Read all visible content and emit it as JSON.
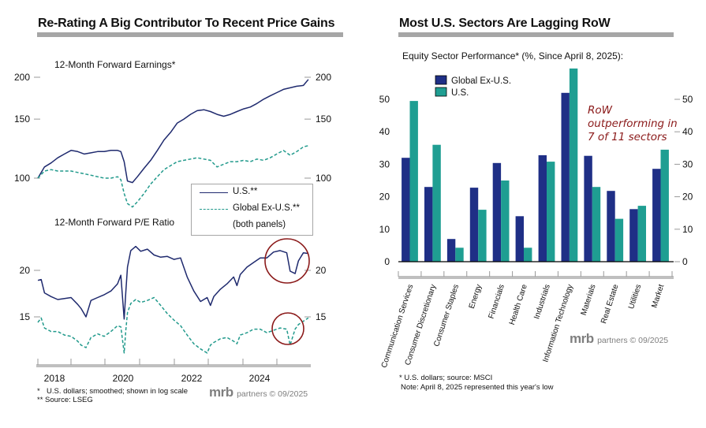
{
  "left": {
    "title": "Re-Rating A Big Contributor To Recent Price Gains",
    "top_panel_label": "12-Month Forward Earnings*",
    "bottom_panel_label": "12-Month Forward P/E Ratio",
    "legend": {
      "us": "U.S.**",
      "global": "Global Ex-U.S.**",
      "note": "(both panels)"
    },
    "footnote1_marker": "*",
    "footnote1": "U.S. dollars; smoothed; shown in log scale",
    "footnote2": "** Source: LSEG",
    "logo_mrb": "mrb",
    "logo_rest": "partners © 09/2025"
  },
  "right": {
    "title": "Most U.S. Sectors Are Lagging RoW",
    "subtitle": "Equity Sector Performance* (%, Since April 8, 2025):",
    "annotation": [
      "RoW",
      "outperforming in",
      "7 of 11 sectors"
    ],
    "footnote1": "* U.S. dollars; source: MSCI",
    "footnote2": "Note: April 8, 2025 represented this year's low",
    "logo_mrb": "mrb",
    "logo_rest": "partners © 09/2025"
  },
  "colors": {
    "us_line": "#1f2a6e",
    "global_line": "#229a8c",
    "bar_global": "#1f2f86",
    "bar_us": "#1f9e92",
    "circle": "#8b1a1a",
    "axis_bar": "#bfbfbf",
    "title_bar": "#a6a6a6"
  },
  "chart_data": [
    {
      "type": "line",
      "title": "12-Month Forward Earnings*",
      "yscale": "log",
      "yticks": [
        100,
        150,
        200
      ],
      "ylim": [
        85,
        205
      ],
      "xticks": [
        "2018",
        "2020",
        "2022",
        "2024"
      ],
      "xlim": [
        2017.5,
        2025.7
      ],
      "x": [
        2017.5,
        2017.7,
        2017.9,
        2018.1,
        2018.3,
        2018.5,
        2018.7,
        2018.9,
        2019.1,
        2019.3,
        2019.5,
        2019.7,
        2019.9,
        2020.0,
        2020.1,
        2020.2,
        2020.35,
        2020.5,
        2020.7,
        2020.9,
        2021.1,
        2021.3,
        2021.5,
        2021.7,
        2021.9,
        2022.1,
        2022.3,
        2022.5,
        2022.7,
        2022.9,
        2023.1,
        2023.3,
        2023.5,
        2023.7,
        2023.9,
        2024.1,
        2024.3,
        2024.5,
        2024.7,
        2024.9,
        2025.1,
        2025.3,
        2025.5,
        2025.65
      ],
      "series": [
        {
          "name": "U.S.**",
          "style": "solid",
          "values": [
            100,
            108,
            111,
            115,
            118,
            121,
            120,
            118,
            119,
            120,
            120,
            121,
            121,
            120,
            112,
            98,
            97,
            101,
            107,
            113,
            121,
            130,
            137,
            146,
            150,
            155,
            159,
            160,
            158,
            155,
            153,
            155,
            158,
            161,
            163,
            167,
            172,
            176,
            180,
            184,
            186,
            188,
            189,
            197
          ]
        },
        {
          "name": "Global Ex-U.S.**",
          "style": "dashed",
          "values": [
            100,
            105,
            106,
            105,
            105,
            105,
            104,
            103,
            102,
            101,
            100,
            100,
            101,
            99,
            90,
            84,
            82,
            85,
            90,
            96,
            101,
            106,
            109,
            112,
            113,
            114,
            115,
            114,
            113,
            108,
            110,
            112,
            112,
            113,
            112,
            114,
            113,
            115,
            118,
            121,
            117,
            120,
            124,
            125
          ]
        }
      ]
    },
    {
      "type": "line",
      "title": "12-Month Forward P/E Ratio",
      "yscale": "log",
      "yticks": [
        15,
        20
      ],
      "ylim": [
        12,
        24.5
      ],
      "xticks": [
        "2018",
        "2020",
        "2022",
        "2024"
      ],
      "xlim": [
        2017.5,
        2025.7
      ],
      "x": [
        2017.5,
        2017.6,
        2017.7,
        2017.9,
        2018.1,
        2018.3,
        2018.5,
        2018.7,
        2018.8,
        2018.95,
        2019.1,
        2019.3,
        2019.5,
        2019.7,
        2019.9,
        2020.0,
        2020.1,
        2020.15,
        2020.2,
        2020.3,
        2020.45,
        2020.6,
        2020.8,
        2021.0,
        2021.2,
        2021.4,
        2021.6,
        2021.8,
        2022.0,
        2022.2,
        2022.4,
        2022.6,
        2022.7,
        2022.8,
        2023.0,
        2023.2,
        2023.4,
        2023.5,
        2023.6,
        2023.8,
        2024.0,
        2024.2,
        2024.4,
        2024.6,
        2024.8,
        2025.0,
        2025.1,
        2025.25,
        2025.35,
        2025.5,
        2025.65
      ],
      "series": [
        {
          "name": "U.S.**",
          "style": "solid",
          "values": [
            18.8,
            18.9,
            17.4,
            17.0,
            16.7,
            16.8,
            16.9,
            16.2,
            15.8,
            15.0,
            16.6,
            16.9,
            17.2,
            17.6,
            18.4,
            19.4,
            14.8,
            17.5,
            20.4,
            22.6,
            23.2,
            22.5,
            22.8,
            22.0,
            21.7,
            21.8,
            21.4,
            21.6,
            19.2,
            17.6,
            16.5,
            16.9,
            16.1,
            17.0,
            17.8,
            18.4,
            19.2,
            18.2,
            19.5,
            20.4,
            21.0,
            21.6,
            21.6,
            22.4,
            22.6,
            22.3,
            19.9,
            19.6,
            21.2,
            22.3,
            22.2
          ]
        },
        {
          "name": "Global Ex-U.S.**",
          "style": "dashed",
          "values": [
            14.5,
            14.9,
            14.0,
            13.7,
            13.7,
            13.4,
            13.3,
            12.9,
            12.6,
            12.4,
            13.2,
            13.5,
            13.3,
            13.7,
            14.2,
            14.1,
            12.0,
            13.8,
            15.4,
            16.3,
            16.7,
            16.4,
            16.6,
            16.9,
            16.1,
            15.3,
            14.7,
            14.2,
            13.4,
            12.7,
            12.3,
            12.0,
            12.6,
            12.8,
            13.1,
            13.2,
            12.9,
            12.7,
            13.4,
            13.6,
            13.9,
            13.9,
            13.6,
            13.8,
            14.0,
            13.9,
            12.6,
            13.9,
            14.3,
            14.6,
            14.9
          ]
        }
      ]
    },
    {
      "type": "bar",
      "title": "Equity Sector Performance* (%, Since April 8, 2025):",
      "categories": [
        "Communication Services",
        "Consumer Discretionary",
        "Consumer Staples",
        "Energy",
        "Financials",
        "Health Care",
        "Industrials",
        "Information Technology",
        "Materials",
        "Real Estate",
        "Utilities",
        "Market"
      ],
      "series": [
        {
          "name": "Global Ex-U.S.",
          "values": [
            32,
            23,
            7,
            22.8,
            30.4,
            14,
            32.8,
            52,
            32.6,
            21.8,
            16.2,
            28.6
          ]
        },
        {
          "name": "U.S.",
          "values": [
            49.5,
            36,
            4.3,
            16,
            25,
            4.3,
            30.8,
            59.5,
            23,
            13.2,
            17.2,
            34.5
          ]
        }
      ],
      "yticks": [
        0,
        10,
        20,
        30,
        40,
        50
      ],
      "ylim": [
        0,
        60
      ],
      "legend": "top-left",
      "xlabel": "",
      "ylabel": ""
    }
  ]
}
